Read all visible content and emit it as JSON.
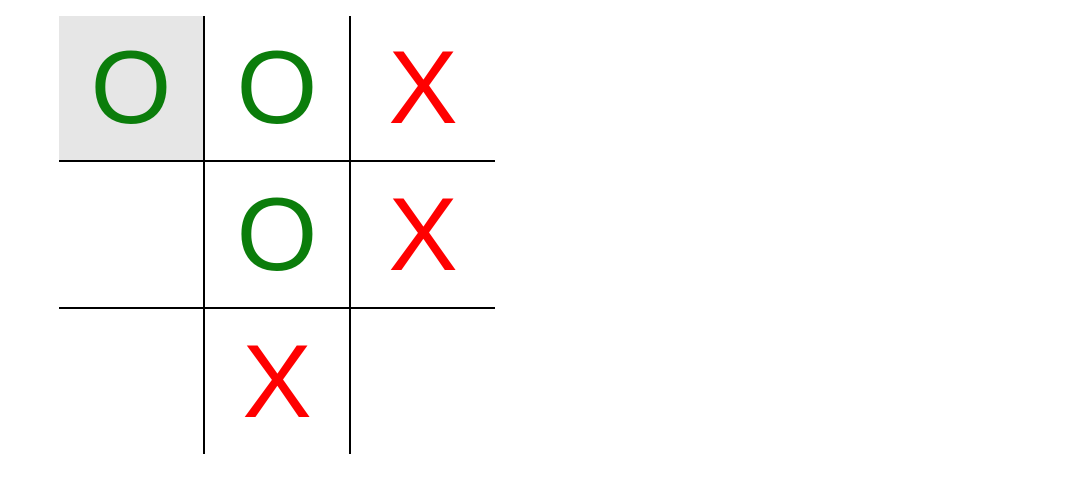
{
  "game": {
    "board": [
      [
        {
          "mark": "O",
          "highlighted": true
        },
        {
          "mark": "O",
          "highlighted": false
        },
        {
          "mark": "X",
          "highlighted": false
        }
      ],
      [
        {
          "mark": "",
          "highlighted": false
        },
        {
          "mark": "O",
          "highlighted": false
        },
        {
          "mark": "X",
          "highlighted": false
        }
      ],
      [
        {
          "mark": "",
          "highlighted": false
        },
        {
          "mark": "X",
          "highlighted": false
        },
        {
          "mark": "",
          "highlighted": false
        }
      ]
    ]
  },
  "colors": {
    "o_mark": "#0b7d0b",
    "x_mark": "#ff0000",
    "highlight": "#e6e6e6",
    "grid_line": "#000000"
  }
}
